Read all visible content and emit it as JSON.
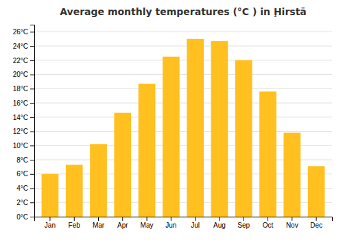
{
  "chart_data": {
    "type": "bar",
    "title": "Average monthly temperatures (°C ) in Ḩirstā",
    "categories": [
      "Jan",
      "Feb",
      "Mar",
      "Apr",
      "May",
      "Jun",
      "Jul",
      "Aug",
      "Sep",
      "Oct",
      "Nov",
      "Dec"
    ],
    "values": [
      6.0,
      7.3,
      10.2,
      14.6,
      18.7,
      22.5,
      25.0,
      24.7,
      22.0,
      17.6,
      11.8,
      7.1
    ],
    "color": "#FFC020",
    "ylim": [
      0,
      27
    ],
    "yticks": [
      {
        "value": 0,
        "label": "0°C"
      },
      {
        "value": 2,
        "label": "2°C"
      },
      {
        "value": 4,
        "label": "4°C"
      },
      {
        "value": 6,
        "label": "6°C"
      },
      {
        "value": 8,
        "label": "8°C"
      },
      {
        "value": 10,
        "label": "10°C"
      },
      {
        "value": 12,
        "label": "12°C"
      },
      {
        "value": 14,
        "label": "14°C"
      },
      {
        "value": 16,
        "label": "16°C"
      },
      {
        "value": 18,
        "label": "18°C"
      },
      {
        "value": 20,
        "label": "20°C"
      },
      {
        "value": 22,
        "label": "22°C"
      },
      {
        "value": 24,
        "label": "24°C"
      },
      {
        "value": 26,
        "label": "26°C"
      }
    ],
    "grid": true
  }
}
